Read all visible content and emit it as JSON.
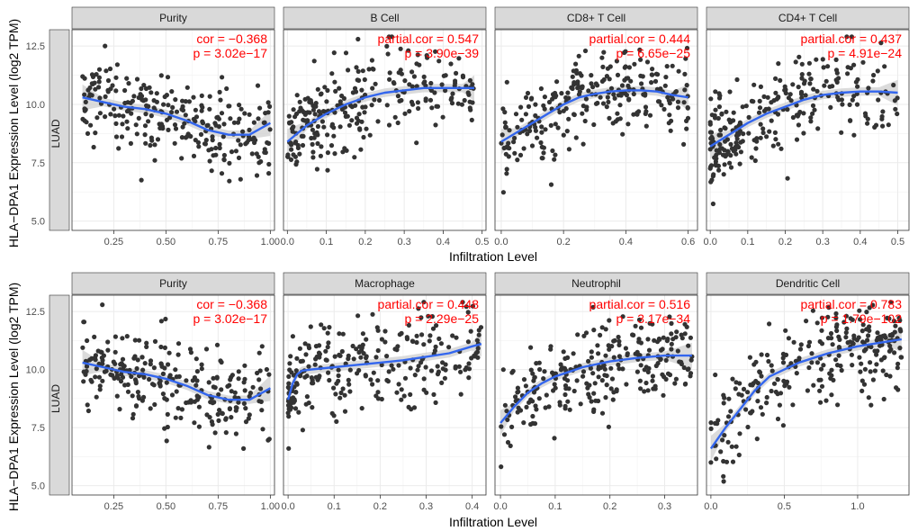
{
  "figure": {
    "y_axis_label": "HLA−DPA1 Expression Level (log2 TPM)",
    "x_axis_label": "Infiltration Level",
    "cancer_label": "LUAD"
  },
  "colors": {
    "point": "#333333",
    "fit_line": "#3366ee",
    "confidence_band": "#cfcfcf",
    "annotation": "#ff0000",
    "strip_fill": "#d9d9d9",
    "grid": "#ebebeb"
  },
  "chart_data": [
    {
      "type": "scatter",
      "title": "Purity",
      "annot1": "cor = −0.368",
      "annot2": "p = 3.02e−17",
      "xlim": [
        0.05,
        1.02
      ],
      "xticks": [
        0.25,
        0.5,
        0.75,
        1.0
      ],
      "xticklabels": [
        "0.25",
        "0.50",
        "0.75",
        "1.00"
      ],
      "ylim": [
        4.6,
        13.2
      ],
      "yticks": [
        5.0,
        7.5,
        10.0,
        12.5
      ],
      "yticklabels": [
        "5.0",
        "7.5",
        "10.0",
        "12.5"
      ],
      "fit": {
        "x": [
          0.1,
          0.2,
          0.3,
          0.4,
          0.5,
          0.6,
          0.7,
          0.8,
          0.9,
          1.0
        ],
        "y": [
          10.3,
          10.1,
          9.9,
          9.8,
          9.6,
          9.3,
          8.9,
          8.7,
          8.7,
          9.2
        ]
      }
    },
    {
      "type": "scatter",
      "title": "B Cell",
      "annot1": "partial.cor = 0.547",
      "annot2": "p = 3.90e−39",
      "xlim": [
        -0.01,
        0.51
      ],
      "xticks": [
        0.0,
        0.1,
        0.2,
        0.3,
        0.4,
        0.5
      ],
      "xticklabels": [
        "0.0",
        "0.1",
        "0.2",
        "0.3",
        "0.4",
        "0.5"
      ],
      "ylim": [
        4.6,
        13.2
      ],
      "yticks": [
        5.0,
        7.5,
        10.0,
        12.5
      ],
      "yticklabels": [
        "5.0",
        "7.5",
        "10.0",
        "12.5"
      ],
      "fit": {
        "x": [
          0.0,
          0.05,
          0.1,
          0.15,
          0.2,
          0.25,
          0.3,
          0.35,
          0.4,
          0.45,
          0.48
        ],
        "y": [
          8.4,
          9.1,
          9.6,
          10.0,
          10.3,
          10.5,
          10.6,
          10.7,
          10.7,
          10.7,
          10.7
        ]
      }
    },
    {
      "type": "scatter",
      "title": "CD8+ T Cell",
      "annot1": "partial.cor = 0.444",
      "annot2": "p = 6.65e−25",
      "xlim": [
        -0.02,
        0.63
      ],
      "xticks": [
        0.0,
        0.2,
        0.4,
        0.6
      ],
      "xticklabels": [
        "0.0",
        "0.2",
        "0.4",
        "0.6"
      ],
      "ylim": [
        4.6,
        13.2
      ],
      "yticks": [
        5.0,
        7.5,
        10.0,
        12.5
      ],
      "yticklabels": [
        "5.0",
        "7.5",
        "10.0",
        "12.5"
      ],
      "fit": {
        "x": [
          0.0,
          0.05,
          0.1,
          0.15,
          0.2,
          0.25,
          0.3,
          0.35,
          0.4,
          0.45,
          0.5,
          0.55,
          0.6
        ],
        "y": [
          8.4,
          8.8,
          9.2,
          9.6,
          10.0,
          10.3,
          10.45,
          10.55,
          10.6,
          10.6,
          10.55,
          10.4,
          10.3
        ]
      }
    },
    {
      "type": "scatter",
      "title": "CD4+ T Cell",
      "annot1": "partial.cor = 0.437",
      "annot2": "p = 4.91e−24",
      "xlim": [
        -0.01,
        0.53
      ],
      "xticks": [
        0.0,
        0.1,
        0.2,
        0.3,
        0.4,
        0.5
      ],
      "xticklabels": [
        "0.0",
        "0.1",
        "0.2",
        "0.3",
        "0.4",
        "0.5"
      ],
      "ylim": [
        4.6,
        13.2
      ],
      "yticks": [
        5.0,
        7.5,
        10.0,
        12.5
      ],
      "yticklabels": [
        "5.0",
        "7.5",
        "10.0",
        "12.5"
      ],
      "fit": {
        "x": [
          0.0,
          0.05,
          0.1,
          0.15,
          0.2,
          0.25,
          0.3,
          0.35,
          0.4,
          0.45,
          0.5
        ],
        "y": [
          8.2,
          8.7,
          9.2,
          9.6,
          9.9,
          10.2,
          10.4,
          10.5,
          10.55,
          10.55,
          10.5
        ]
      }
    },
    {
      "type": "scatter",
      "title": "Purity",
      "annot1": "cor = −0.368",
      "annot2": "p = 3.02e−17",
      "xlim": [
        0.05,
        1.02
      ],
      "xticks": [
        0.25,
        0.5,
        0.75,
        1.0
      ],
      "xticklabels": [
        "0.25",
        "0.50",
        "0.75",
        "1.00"
      ],
      "ylim": [
        4.6,
        13.2
      ],
      "yticks": [
        5.0,
        7.5,
        10.0,
        12.5
      ],
      "yticklabels": [
        "5.0",
        "7.5",
        "10.0",
        "12.5"
      ],
      "fit": {
        "x": [
          0.1,
          0.2,
          0.3,
          0.4,
          0.5,
          0.6,
          0.7,
          0.8,
          0.9,
          1.0
        ],
        "y": [
          10.3,
          10.1,
          9.9,
          9.8,
          9.6,
          9.3,
          8.9,
          8.7,
          8.7,
          9.2
        ]
      }
    },
    {
      "type": "scatter",
      "title": "Macrophage",
      "annot1": "partial.cor = 0.448",
      "annot2": "p =  2.29e−25",
      "xlim": [
        -0.01,
        0.43
      ],
      "xticks": [
        0.0,
        0.1,
        0.2,
        0.3,
        0.4
      ],
      "xticklabels": [
        "0.0",
        "0.1",
        "0.2",
        "0.3",
        "0.4"
      ],
      "ylim": [
        4.6,
        13.2
      ],
      "yticks": [
        5.0,
        7.5,
        10.0,
        12.5
      ],
      "yticklabels": [
        "5.0",
        "7.5",
        "10.0",
        "12.5"
      ],
      "fit": {
        "x": [
          0.0,
          0.01,
          0.02,
          0.03,
          0.05,
          0.1,
          0.15,
          0.2,
          0.25,
          0.3,
          0.35,
          0.4,
          0.42
        ],
        "y": [
          8.7,
          9.4,
          9.8,
          9.95,
          10.0,
          10.1,
          10.2,
          10.3,
          10.4,
          10.55,
          10.7,
          11.0,
          11.1
        ]
      }
    },
    {
      "type": "scatter",
      "title": "Neutrophil",
      "annot1": "partial.cor = 0.516",
      "annot2": "p =  3.17e−34",
      "xlim": [
        -0.01,
        0.36
      ],
      "xticks": [
        0.0,
        0.1,
        0.2,
        0.3
      ],
      "xticklabels": [
        "0.0",
        "0.1",
        "0.2",
        "0.3"
      ],
      "ylim": [
        4.6,
        13.2
      ],
      "yticks": [
        5.0,
        7.5,
        10.0,
        12.5
      ],
      "yticklabels": [
        "5.0",
        "7.5",
        "10.0",
        "12.5"
      ],
      "fit": {
        "x": [
          0.0,
          0.025,
          0.05,
          0.075,
          0.1,
          0.125,
          0.15,
          0.2,
          0.25,
          0.3,
          0.35
        ],
        "y": [
          7.7,
          8.4,
          9.0,
          9.4,
          9.7,
          9.9,
          10.1,
          10.35,
          10.5,
          10.6,
          10.6
        ]
      }
    },
    {
      "type": "scatter",
      "title": "Dendritic Cell",
      "annot1": "partial.cor = 0.783",
      "annot2": "p = 1.79e−102",
      "xlim": [
        -0.03,
        1.35
      ],
      "xticks": [
        0.0,
        0.5,
        1.0
      ],
      "xticklabels": [
        "0.0",
        "0.5",
        "1.0"
      ],
      "ylim": [
        4.6,
        13.2
      ],
      "yticks": [
        5.0,
        7.5,
        10.0,
        12.5
      ],
      "yticklabels": [
        "5.0",
        "7.5",
        "10.0",
        "12.5"
      ],
      "fit": {
        "x": [
          0.0,
          0.1,
          0.2,
          0.3,
          0.4,
          0.5,
          0.6,
          0.7,
          0.8,
          0.9,
          1.0,
          1.1,
          1.2,
          1.3
        ],
        "y": [
          6.6,
          7.5,
          8.3,
          9.1,
          9.7,
          10.0,
          10.3,
          10.5,
          10.7,
          10.85,
          11.0,
          11.1,
          11.2,
          11.3
        ]
      }
    }
  ]
}
